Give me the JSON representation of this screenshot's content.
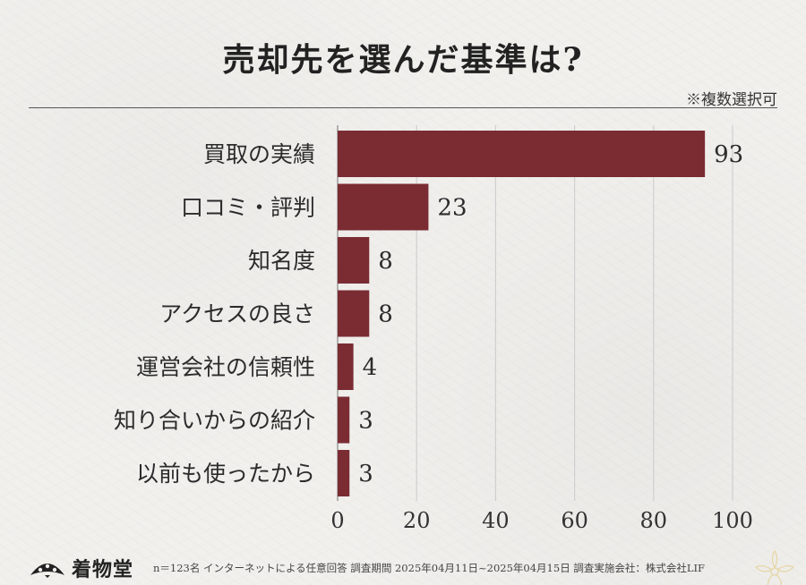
{
  "title": "売却先を選んだ基準は?",
  "note": "※複数選択可",
  "brand": "着物堂",
  "footnote": "n＝123名 インターネットによる任意回答 調査期間 2025年04月11日~2025年04月15日 調査実施会社：株式会社LIF",
  "colors": {
    "bar": "#7b2c33",
    "grid": "#cfcfcf",
    "axis": "#888888"
  },
  "chart_data": {
    "type": "bar",
    "orientation": "horizontal",
    "categories": [
      "買取の実績",
      "口コミ・評判",
      "知名度",
      "アクセスの良さ",
      "運営会社の信頼性",
      "知り合いからの紹介",
      "以前も使ったから"
    ],
    "values": [
      93,
      23,
      8,
      8,
      4,
      3,
      3
    ],
    "xticks": [
      0,
      20,
      40,
      60,
      80,
      100
    ],
    "xlim": [
      0,
      100
    ],
    "grid": true,
    "legend": "none"
  }
}
